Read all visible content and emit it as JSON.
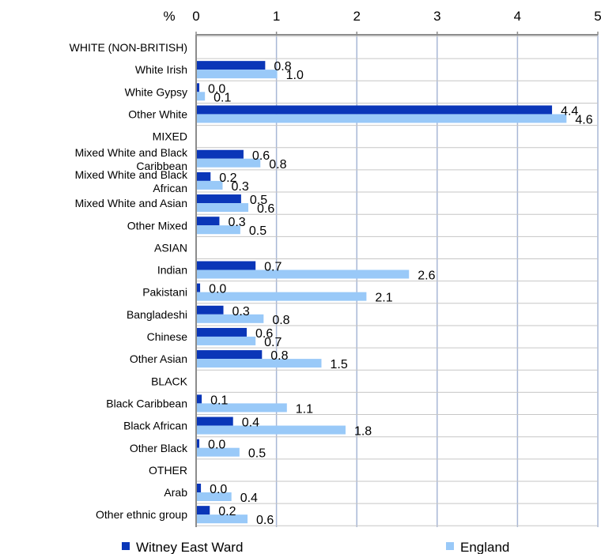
{
  "chart_data": {
    "type": "bar",
    "orientation": "horizontal",
    "unit_label": "%",
    "xlim": [
      0,
      5
    ],
    "x_ticks": [
      "0",
      "1",
      "2",
      "3",
      "4",
      "5"
    ],
    "grid": true,
    "legend_position": "bottom",
    "categories": [
      "WHITE (NON-BRITISH)",
      "White Irish",
      "White Gypsy",
      "Other White",
      "MIXED",
      "Mixed White and Black Caribbean",
      "Mixed White and Black African",
      "Mixed White and Asian",
      "Other Mixed",
      "ASIAN",
      "Indian",
      "Pakistani",
      "Bangladeshi",
      "Chinese",
      "Other Asian",
      "BLACK",
      "Black Caribbean",
      "Black African",
      "Other Black",
      "OTHER",
      "Arab",
      "Other ethnic group"
    ],
    "series": [
      {
        "name": "Witney East Ward",
        "color": "#0a36b8",
        "values": [
          null,
          0.85,
          0.03,
          4.42,
          null,
          0.58,
          0.17,
          0.55,
          0.28,
          null,
          0.73,
          0.04,
          0.33,
          0.62,
          0.81,
          null,
          0.06,
          0.45,
          0.03,
          null,
          0.05,
          0.16
        ],
        "labels": [
          "",
          "0.8",
          "0.0",
          "4.4",
          "",
          "0.6",
          "0.2",
          "0.5",
          "0.3",
          "",
          "0.7",
          "0.0",
          "0.3",
          "0.6",
          "0.8",
          "",
          "0.1",
          "0.4",
          "0.0",
          "",
          "0.0",
          "0.2"
        ]
      },
      {
        "name": "England",
        "color": "#99c9f8",
        "values": [
          null,
          1.0,
          0.1,
          4.6,
          null,
          0.79,
          0.32,
          0.64,
          0.54,
          null,
          2.64,
          2.11,
          0.83,
          0.73,
          1.55,
          null,
          1.12,
          1.85,
          0.53,
          null,
          0.43,
          0.63
        ],
        "labels": [
          "",
          "1.0",
          "0.1",
          "4.6",
          "",
          "0.8",
          "0.3",
          "0.6",
          "0.5",
          "",
          "2.6",
          "2.1",
          "0.8",
          "0.7",
          "1.5",
          "",
          "1.1",
          "1.8",
          "0.5",
          "",
          "0.4",
          "0.6"
        ]
      }
    ]
  }
}
